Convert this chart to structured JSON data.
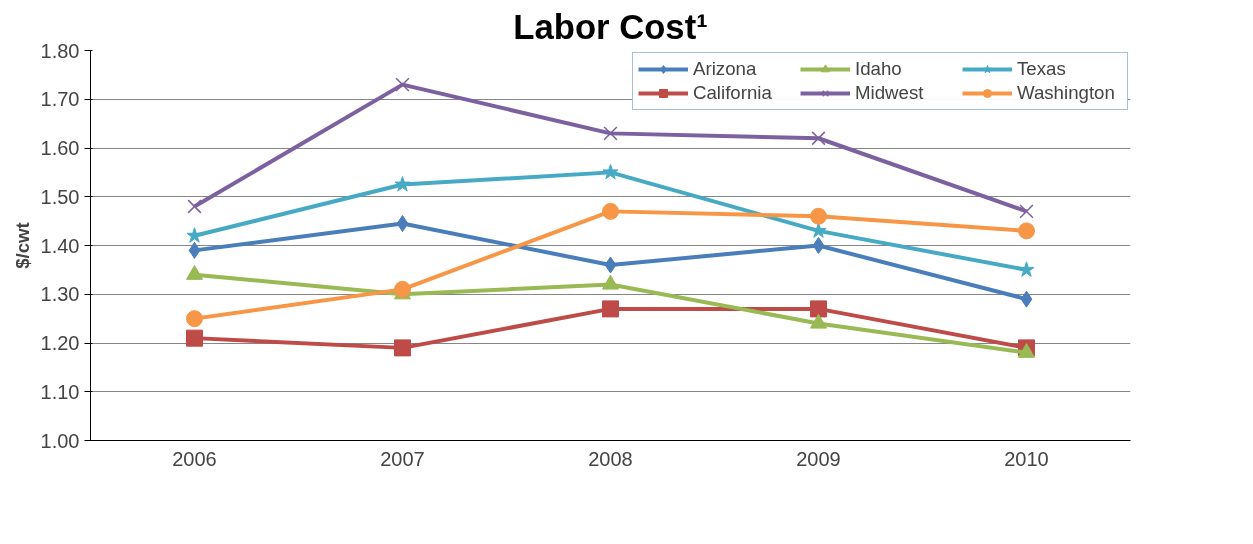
{
  "chart_data": {
    "type": "line",
    "title": "Labor Cost¹",
    "ylabel": "$/cwt",
    "categories": [
      "2006",
      "2007",
      "2008",
      "2009",
      "2010"
    ],
    "series": [
      {
        "name": "Arizona",
        "color": "#4a7ebb",
        "marker": "diamond",
        "values": [
          1.39,
          1.445,
          1.36,
          1.4,
          1.29
        ]
      },
      {
        "name": "California",
        "color": "#be4b48",
        "marker": "square",
        "values": [
          1.21,
          1.19,
          1.27,
          1.27,
          1.19
        ]
      },
      {
        "name": "Idaho",
        "color": "#98b954",
        "marker": "triangle",
        "values": [
          1.34,
          1.3,
          1.32,
          1.24,
          1.18
        ]
      },
      {
        "name": "Midwest",
        "color": "#7d60a0",
        "marker": "cross",
        "values": [
          1.48,
          1.73,
          1.63,
          1.62,
          1.47
        ]
      },
      {
        "name": "Texas",
        "color": "#46aac5",
        "marker": "star",
        "values": [
          1.42,
          1.525,
          1.55,
          1.43,
          1.35
        ]
      },
      {
        "name": "Washington",
        "color": "#f79646",
        "marker": "circle",
        "values": [
          1.25,
          1.31,
          1.47,
          1.46,
          1.43
        ]
      }
    ],
    "ylim": [
      1.0,
      1.8
    ],
    "yticks": [
      {
        "value": 1.0,
        "label": "1.00"
      },
      {
        "value": 1.1,
        "label": "1.10"
      },
      {
        "value": 1.2,
        "label": "1.20"
      },
      {
        "value": 1.3,
        "label": "1.30"
      },
      {
        "value": 1.4,
        "label": "1.40"
      },
      {
        "value": 1.5,
        "label": "1.50"
      },
      {
        "value": 1.6,
        "label": "1.60"
      },
      {
        "value": 1.7,
        "label": "1.70"
      },
      {
        "value": 1.8,
        "label": "1.80"
      }
    ],
    "grid": "y",
    "legend": "top right",
    "line_style": "solid"
  }
}
